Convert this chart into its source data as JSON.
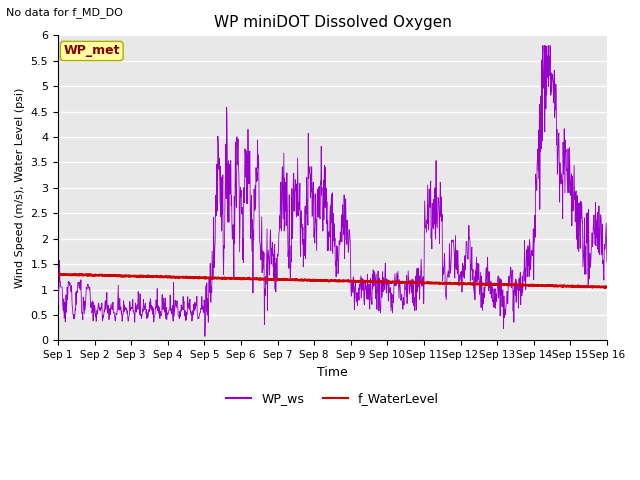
{
  "title": "WP miniDOT Dissolved Oxygen",
  "top_left_text": "No data for f_MD_DO",
  "xlabel": "Time",
  "ylabel": "Wind Speed (m/s), Water Level (psi)",
  "ylim": [
    0.0,
    6.0
  ],
  "yticks": [
    0.0,
    0.5,
    1.0,
    1.5,
    2.0,
    2.5,
    3.0,
    3.5,
    4.0,
    4.5,
    5.0,
    5.5,
    6.0
  ],
  "legend_labels": [
    "WP_ws",
    "f_WaterLevel"
  ],
  "wp_ws_color": "#9900CC",
  "f_wl_color": "#CC0000",
  "background_color": "#E8E8E8",
  "annotation_box_facecolor": "#FFFFA0",
  "annotation_box_edgecolor": "#AAAA00",
  "annotation_text": "WP_met",
  "annotation_text_color": "#880000",
  "xtick_labels": [
    "Sep 1",
    "Sep 2",
    "Sep 3",
    "Sep 4",
    "Sep 5",
    "Sep 6",
    "Sep 7",
    "Sep 8",
    "Sep 9",
    "Sep 10",
    "Sep 11",
    "Sep 12",
    "Sep 13",
    "Sep 14",
    "Sep 15",
    "Sep 16"
  ],
  "xtick_positions": [
    0,
    1,
    2,
    3,
    4,
    5,
    6,
    7,
    8,
    9,
    10,
    11,
    12,
    13,
    14,
    15
  ],
  "figsize": [
    6.4,
    4.8
  ],
  "dpi": 100
}
